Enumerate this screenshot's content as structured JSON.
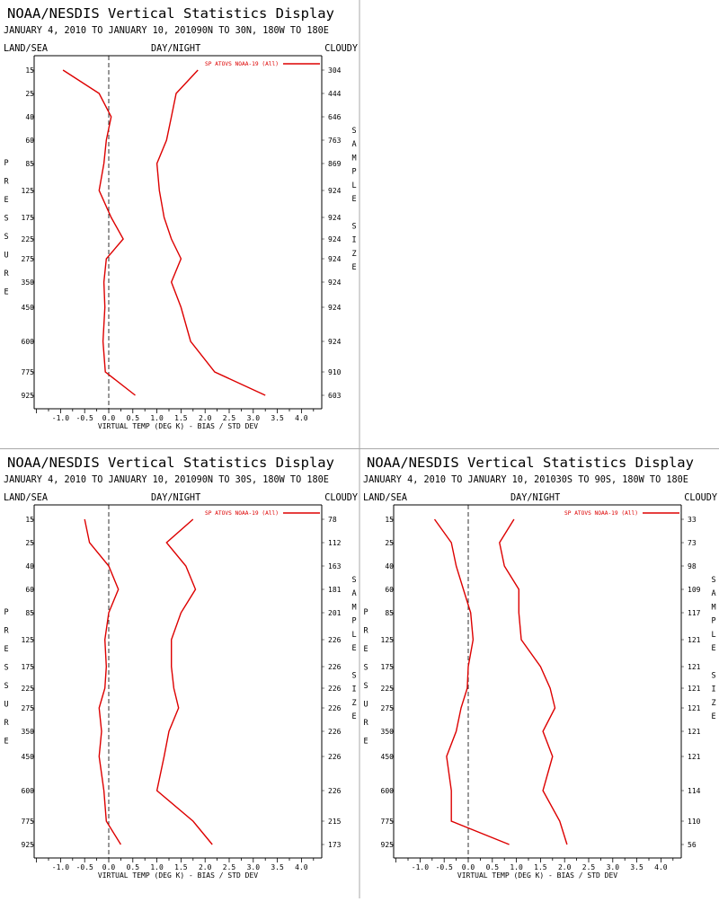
{
  "panel_shared": {
    "title": "NOAA/NESDIS Vertical Statistics Display",
    "land_sea": "LAND/SEA",
    "day_night": "DAY/NIGHT",
    "cloudy": "CLOUDY",
    "ylabel": "PRESSURE",
    "ylabel_right": "SAMPLE SIZE",
    "xlabel": "VIRTUAL TEMP (DEG K) - BIAS / STD DEV",
    "legend": "SP ATOVS NOAA-19 (All)",
    "line_color": "#dd0000"
  },
  "chart_data": [
    {
      "type": "line",
      "subtitle": "JANUARY 4, 2010 TO JANUARY 10, 201090N TO 30N, 180W TO 180E",
      "pressure_levels": [
        15,
        25,
        40,
        60,
        85,
        125,
        175,
        225,
        275,
        350,
        450,
        600,
        775,
        925
      ],
      "sample_size": [
        304,
        444,
        646,
        763,
        869,
        924,
        924,
        924,
        924,
        924,
        924,
        924,
        910,
        603
      ],
      "series": [
        {
          "name": "BIAS",
          "values": [
            -0.95,
            -0.2,
            0.05,
            -0.05,
            -0.1,
            -0.2,
            0.05,
            0.3,
            -0.05,
            -0.1,
            -0.08,
            -0.12,
            -0.07,
            0.55
          ]
        },
        {
          "name": "STD DEV",
          "values": [
            1.85,
            1.4,
            1.3,
            1.2,
            1.0,
            1.05,
            1.15,
            1.3,
            1.5,
            1.3,
            1.5,
            1.7,
            2.2,
            3.25
          ]
        }
      ],
      "xlim": [
        -1.5,
        4.5
      ],
      "xticks": [
        "-1.0",
        "-0.5",
        "0.0",
        "0.5",
        "1.0",
        "1.5",
        "2.0",
        "2.5",
        "3.0",
        "3.5",
        "4.0"
      ]
    },
    {
      "type": "line",
      "subtitle": "JANUARY 4, 2010 TO JANUARY 10, 201090N TO 30S, 180W TO 180E",
      "pressure_levels": [
        15,
        25,
        40,
        60,
        85,
        125,
        175,
        225,
        275,
        350,
        450,
        600,
        775,
        925
      ],
      "sample_size": [
        78,
        112,
        163,
        181,
        201,
        226,
        226,
        226,
        226,
        226,
        226,
        226,
        215,
        173
      ],
      "series": [
        {
          "name": "BIAS",
          "values": [
            -0.5,
            -0.4,
            0.0,
            0.2,
            0.0,
            -0.08,
            -0.05,
            -0.08,
            -0.2,
            -0.15,
            -0.2,
            -0.1,
            -0.05,
            0.25
          ]
        },
        {
          "name": "STD DEV",
          "values": [
            1.75,
            1.2,
            1.6,
            1.8,
            1.5,
            1.3,
            1.3,
            1.35,
            1.45,
            1.25,
            1.15,
            1.0,
            1.75,
            2.15
          ]
        }
      ],
      "xlim": [
        -1.5,
        4.5
      ],
      "xticks": [
        "-1.0",
        "-0.5",
        "0.0",
        "0.5",
        "1.0",
        "1.5",
        "2.0",
        "2.5",
        "3.0",
        "3.5",
        "4.0"
      ]
    },
    {
      "type": "line",
      "subtitle": "JANUARY 4, 2010 TO JANUARY 10, 201030S TO 90S, 180W TO 180E",
      "pressure_levels": [
        15,
        25,
        40,
        60,
        85,
        125,
        175,
        225,
        275,
        350,
        450,
        600,
        775,
        925
      ],
      "sample_size": [
        33,
        73,
        98,
        109,
        117,
        121,
        121,
        121,
        121,
        121,
        121,
        114,
        110,
        56
      ],
      "series": [
        {
          "name": "BIAS",
          "values": [
            -0.7,
            -0.35,
            -0.25,
            -0.1,
            0.05,
            0.1,
            0.0,
            -0.02,
            -0.15,
            -0.25,
            -0.45,
            -0.35,
            -0.35,
            0.85
          ]
        },
        {
          "name": "STD DEV",
          "values": [
            0.95,
            0.65,
            0.75,
            1.05,
            1.05,
            1.1,
            1.5,
            1.7,
            1.8,
            1.55,
            1.75,
            1.55,
            1.9,
            2.05
          ]
        }
      ],
      "xlim": [
        -1.5,
        4.5
      ],
      "xticks": [
        "-1.0",
        "-0.5",
        "0.0",
        "0.5",
        "1.0",
        "1.5",
        "2.0",
        "2.5",
        "3.0",
        "3.5",
        "4.0"
      ]
    }
  ]
}
